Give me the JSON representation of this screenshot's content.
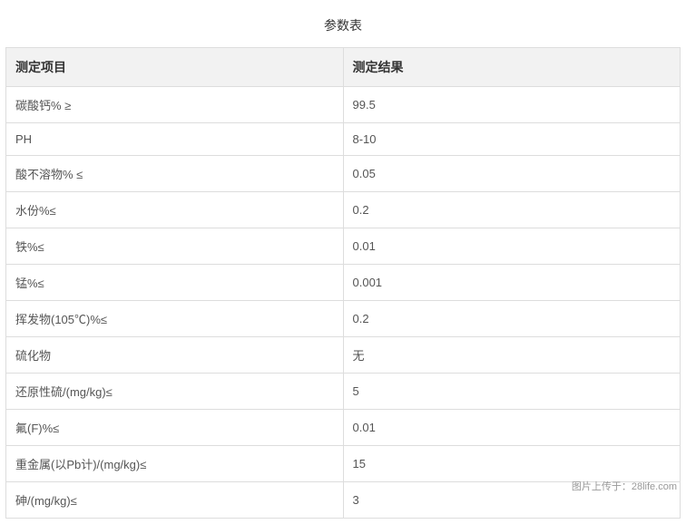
{
  "title": "参数表",
  "columns": [
    "测定项目",
    "测定结果"
  ],
  "rows": [
    [
      "碳酸钙% ≥",
      "99.5"
    ],
    [
      "PH",
      "8-10"
    ],
    [
      "酸不溶物% ≤",
      "0.05"
    ],
    [
      "水份%≤",
      "0.2"
    ],
    [
      "铁%≤",
      "0.01"
    ],
    [
      "锰%≤",
      "0.001"
    ],
    [
      "挥发物(105℃)%≤",
      "0.2"
    ],
    [
      "硫化物",
      "无"
    ],
    [
      "还原性硫/(mg/kg)≤",
      "5"
    ],
    [
      "氟(F)%≤",
      "0.01"
    ],
    [
      "重金属(以Pb计)/(mg/kg)≤",
      "15"
    ],
    [
      "砷/(mg/kg)≤",
      "3"
    ]
  ],
  "watermark": "图片上传于：28life.com",
  "styles": {
    "type": "table",
    "background_color": "#ffffff",
    "header_background": "#f2f2f2",
    "border_color": "#dddddd",
    "title_fontsize": 14,
    "title_color": "#333333",
    "header_fontsize": 14,
    "header_color": "#333333",
    "cell_fontsize": 13,
    "cell_color": "#555555",
    "watermark_color": "#999999",
    "watermark_fontsize": 11,
    "column_widths": [
      "50%",
      "50%"
    ]
  }
}
